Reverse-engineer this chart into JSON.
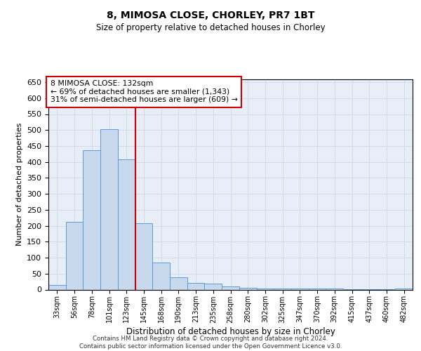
{
  "title1": "8, MIMOSA CLOSE, CHORLEY, PR7 1BT",
  "title2": "Size of property relative to detached houses in Chorley",
  "xlabel": "Distribution of detached houses by size in Chorley",
  "ylabel": "Number of detached properties",
  "footer1": "Contains HM Land Registry data © Crown copyright and database right 2024.",
  "footer2": "Contains public sector information licensed under the Open Government Licence v3.0.",
  "annotation_line1": "8 MIMOSA CLOSE: 132sqm",
  "annotation_line2": "← 69% of detached houses are smaller (1,343)",
  "annotation_line3": "31% of semi-detached houses are larger (609) →",
  "bar_color": "#c8d9ed",
  "bar_edge_color": "#5b9bd5",
  "vline_color": "#cc0000",
  "vline_x": 4.5,
  "categories": [
    "33sqm",
    "56sqm",
    "78sqm",
    "101sqm",
    "123sqm",
    "145sqm",
    "168sqm",
    "190sqm",
    "213sqm",
    "235sqm",
    "258sqm",
    "280sqm",
    "302sqm",
    "325sqm",
    "347sqm",
    "370sqm",
    "392sqm",
    "415sqm",
    "437sqm",
    "460sqm",
    "482sqm"
  ],
  "values": [
    15,
    212,
    436,
    503,
    408,
    207,
    85,
    38,
    20,
    18,
    11,
    6,
    4,
    4,
    4,
    4,
    4,
    1,
    1,
    1,
    4
  ],
  "ylim": [
    0,
    660
  ],
  "yticks": [
    0,
    50,
    100,
    150,
    200,
    250,
    300,
    350,
    400,
    450,
    500,
    550,
    600,
    650
  ],
  "grid_color": "#d0d8e8",
  "background_color": "#e8eef8"
}
